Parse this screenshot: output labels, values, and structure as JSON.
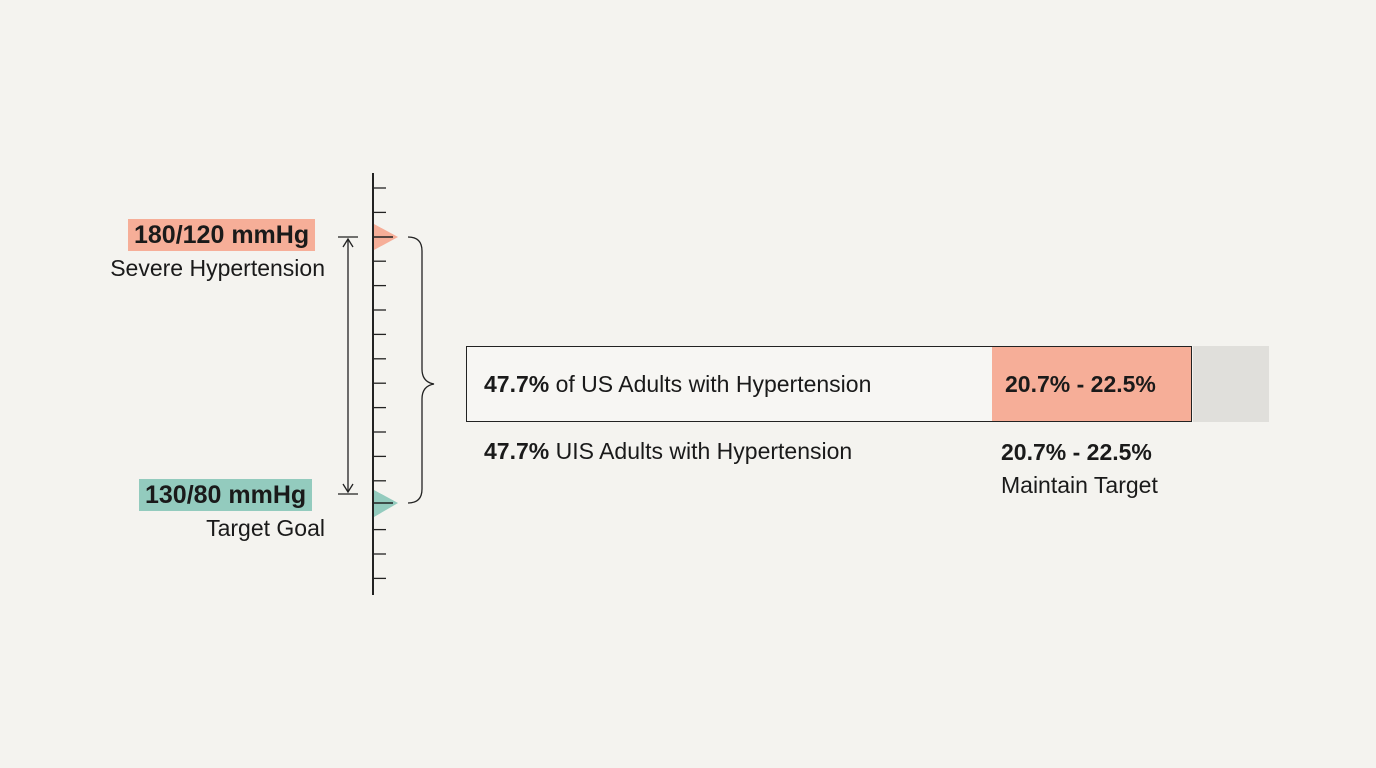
{
  "colors": {
    "background": "#f4f3ef",
    "severe": "#f6ae98",
    "target": "#93cbbe",
    "rest": "#e0dfdb",
    "ink": "#222222"
  },
  "scale": {
    "severe": {
      "value": "180/120 mmHg",
      "label": "Severe Hypertension"
    },
    "target": {
      "value": "130/80 mmHg",
      "label": "Target Goal"
    }
  },
  "bar": {
    "main_pct": "47.7%",
    "main_text": "of US Adults with Hypertension",
    "range_text": "20.7% - 22.5%"
  },
  "below": {
    "left_pct": "47.7%",
    "left_text": "UIS Adults with Hypertension",
    "right_value": "20.7% - 22.5%",
    "right_label": "Maintain Target"
  }
}
